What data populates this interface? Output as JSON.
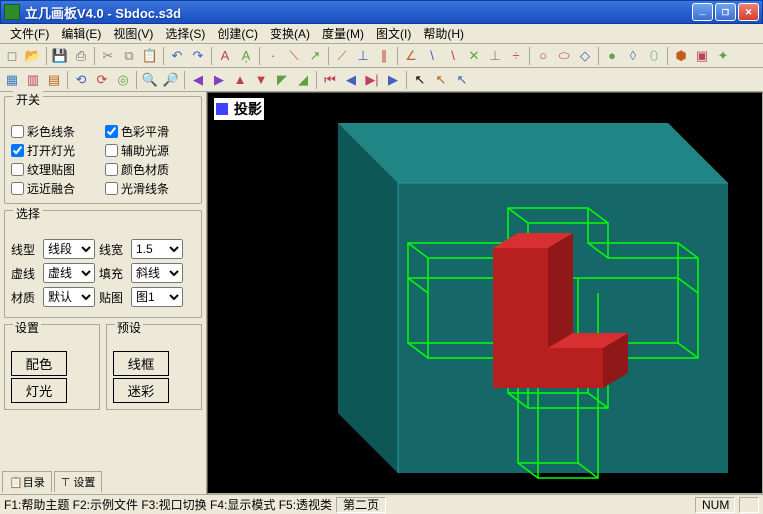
{
  "window": {
    "title": "立几画板V4.0 - Sbdoc.s3d"
  },
  "menu": {
    "items": [
      "文件(F)",
      "编辑(E)",
      "视图(V)",
      "选择(S)",
      "创建(C)",
      "变换(A)",
      "度量(M)",
      "图文(I)",
      "帮助(H)"
    ]
  },
  "toolbar1": {
    "icons": [
      {
        "name": "new-icon",
        "glyph": "◻",
        "color": "#888"
      },
      {
        "name": "open-icon",
        "glyph": "📂",
        "color": "#caa040"
      },
      {
        "sep": true
      },
      {
        "name": "save-icon",
        "glyph": "💾",
        "color": "#4060c0"
      },
      {
        "name": "print-icon",
        "glyph": "⎙",
        "color": "#666"
      },
      {
        "sep": true
      },
      {
        "name": "cut-icon",
        "glyph": "✂",
        "color": "#888"
      },
      {
        "name": "copy-icon",
        "glyph": "⧉",
        "color": "#888"
      },
      {
        "name": "paste-icon",
        "glyph": "📋",
        "color": "#888"
      },
      {
        "sep": true
      },
      {
        "name": "undo-icon",
        "glyph": "↶",
        "color": "#4060c0"
      },
      {
        "name": "redo-icon",
        "glyph": "↷",
        "color": "#4060c0"
      },
      {
        "sep": true
      },
      {
        "name": "text-icon",
        "glyph": "A",
        "color": "#c04060"
      },
      {
        "name": "label-icon",
        "glyph": "Aͅ",
        "color": "#60a040"
      },
      {
        "sep": true
      },
      {
        "name": "point-icon",
        "glyph": "·",
        "color": "#4060c0"
      },
      {
        "name": "line-icon",
        "glyph": "⟍",
        "color": "#c06020"
      },
      {
        "name": "ray-icon",
        "glyph": "↗",
        "color": "#60a040"
      },
      {
        "sep": true
      },
      {
        "name": "segment-icon",
        "glyph": "⟋",
        "color": "#c06020"
      },
      {
        "name": "perp-icon",
        "glyph": "⊥",
        "color": "#4060c0"
      },
      {
        "name": "parallel-icon",
        "glyph": "∥",
        "color": "#c04040"
      },
      {
        "sep": true
      },
      {
        "name": "angle-icon",
        "glyph": "∠",
        "color": "#c06020"
      },
      {
        "name": "seg2-icon",
        "glyph": "\\",
        "color": "#4060c0"
      },
      {
        "name": "seg3-icon",
        "glyph": "\\",
        "color": "#c04040"
      },
      {
        "name": "cross-icon",
        "glyph": "✕",
        "color": "#60a040"
      },
      {
        "name": "mid-icon",
        "glyph": "⊥",
        "color": "#888"
      },
      {
        "name": "bisect-icon",
        "glyph": "÷",
        "color": "#c04040"
      },
      {
        "sep": true
      },
      {
        "name": "circle-icon",
        "glyph": "○",
        "color": "#c04040"
      },
      {
        "name": "ellipse-icon",
        "glyph": "⬭",
        "color": "#c04040"
      },
      {
        "name": "square-icon",
        "glyph": "◇",
        "color": "#4060c0"
      },
      {
        "sep": true
      },
      {
        "name": "sphere-icon",
        "glyph": "●",
        "color": "#60a060"
      },
      {
        "name": "cone-icon",
        "glyph": "◊",
        "color": "#6080c0"
      },
      {
        "name": "cylinder-icon",
        "glyph": "⬯",
        "color": "#60a060"
      },
      {
        "sep": true
      },
      {
        "name": "cube-icon",
        "glyph": "⬢",
        "color": "#c06020"
      },
      {
        "name": "prism-icon",
        "glyph": "▣",
        "color": "#c04060"
      },
      {
        "name": "axes-icon",
        "glyph": "✦",
        "color": "#60a040"
      }
    ]
  },
  "toolbar2": {
    "icons": [
      {
        "name": "grid-icon",
        "glyph": "▦",
        "color": "#4080c0"
      },
      {
        "name": "view1-icon",
        "glyph": "▥",
        "color": "#c04060"
      },
      {
        "name": "view2-icon",
        "glyph": "▤",
        "color": "#c06020"
      },
      {
        "sep": true
      },
      {
        "name": "rotate-icon",
        "glyph": "⟲",
        "color": "#4060c0"
      },
      {
        "name": "flip-icon",
        "glyph": "⟳",
        "color": "#c04040"
      },
      {
        "name": "refresh-icon",
        "glyph": "◎",
        "color": "#60a040"
      },
      {
        "sep": true
      },
      {
        "name": "zoomin-icon",
        "glyph": "🔍",
        "color": "#888"
      },
      {
        "name": "zoomout-icon",
        "glyph": "🔎",
        "color": "#888"
      },
      {
        "sep": true
      },
      {
        "name": "left-icon",
        "glyph": "◀",
        "color": "#8040c0"
      },
      {
        "name": "right-icon",
        "glyph": "▶",
        "color": "#8040c0"
      },
      {
        "name": "up-icon",
        "glyph": "▲",
        "color": "#c04040"
      },
      {
        "name": "down-icon",
        "glyph": "▼",
        "color": "#c04040"
      },
      {
        "name": "nw-icon",
        "glyph": "◤",
        "color": "#60a040"
      },
      {
        "name": "se-icon",
        "glyph": "◢",
        "color": "#60a040"
      },
      {
        "sep": true
      },
      {
        "name": "first-icon",
        "glyph": "⏮",
        "color": "#c04060"
      },
      {
        "name": "prev-icon",
        "glyph": "◀",
        "color": "#4060c0"
      },
      {
        "name": "play-icon",
        "glyph": "▶|",
        "color": "#c04060"
      },
      {
        "name": "next-icon",
        "glyph": "▶",
        "color": "#4060c0"
      },
      {
        "sep": true
      },
      {
        "name": "select-icon",
        "glyph": "↖",
        "color": "#000"
      },
      {
        "name": "move-icon",
        "glyph": "↖",
        "color": "#c06020"
      },
      {
        "name": "pan-icon",
        "glyph": "↖",
        "color": "#4060c0"
      }
    ]
  },
  "panel": {
    "switch": {
      "title": "开关",
      "items": [
        {
          "label": "彩色线条",
          "checked": false
        },
        {
          "label": "色彩平滑",
          "checked": true
        },
        {
          "label": "打开灯光",
          "checked": true
        },
        {
          "label": "辅助光源",
          "checked": false
        },
        {
          "label": "纹理贴图",
          "checked": false
        },
        {
          "label": "颜色材质",
          "checked": false
        },
        {
          "label": "远近融合",
          "checked": false
        },
        {
          "label": "光滑线条",
          "checked": false
        }
      ]
    },
    "select": {
      "title": "选择",
      "rows": [
        {
          "l1": "线型",
          "v1": "线段",
          "l2": "线宽",
          "v2": "1.5"
        },
        {
          "l1": "虚线",
          "v1": "虚线",
          "l2": "填充",
          "v2": "斜线"
        },
        {
          "l1": "材质",
          "v1": "默认",
          "l2": "贴图",
          "v2": "图1"
        }
      ]
    },
    "settings": {
      "title": "设置",
      "btn1": "配色",
      "btn2": "灯光"
    },
    "presets": {
      "title": "预设",
      "btn1": "线框",
      "btn2": "迷彩"
    },
    "tabs": [
      "📋目录",
      "⊤ 设置"
    ]
  },
  "viewport": {
    "label": "投影",
    "bg": "#000000",
    "cube_face": "#1a7a7a",
    "cube_face_dark": "#0d5555",
    "wireframe": "#00ff00",
    "solid_front": "#b82020",
    "solid_top": "#d83030",
    "solid_side": "#901818"
  },
  "status": {
    "help": "F1:帮助主题 F2:示例文件 F3:视口切换 F4:显示模式 F5:透视类",
    "page": "第二页",
    "mode": "NUM"
  }
}
